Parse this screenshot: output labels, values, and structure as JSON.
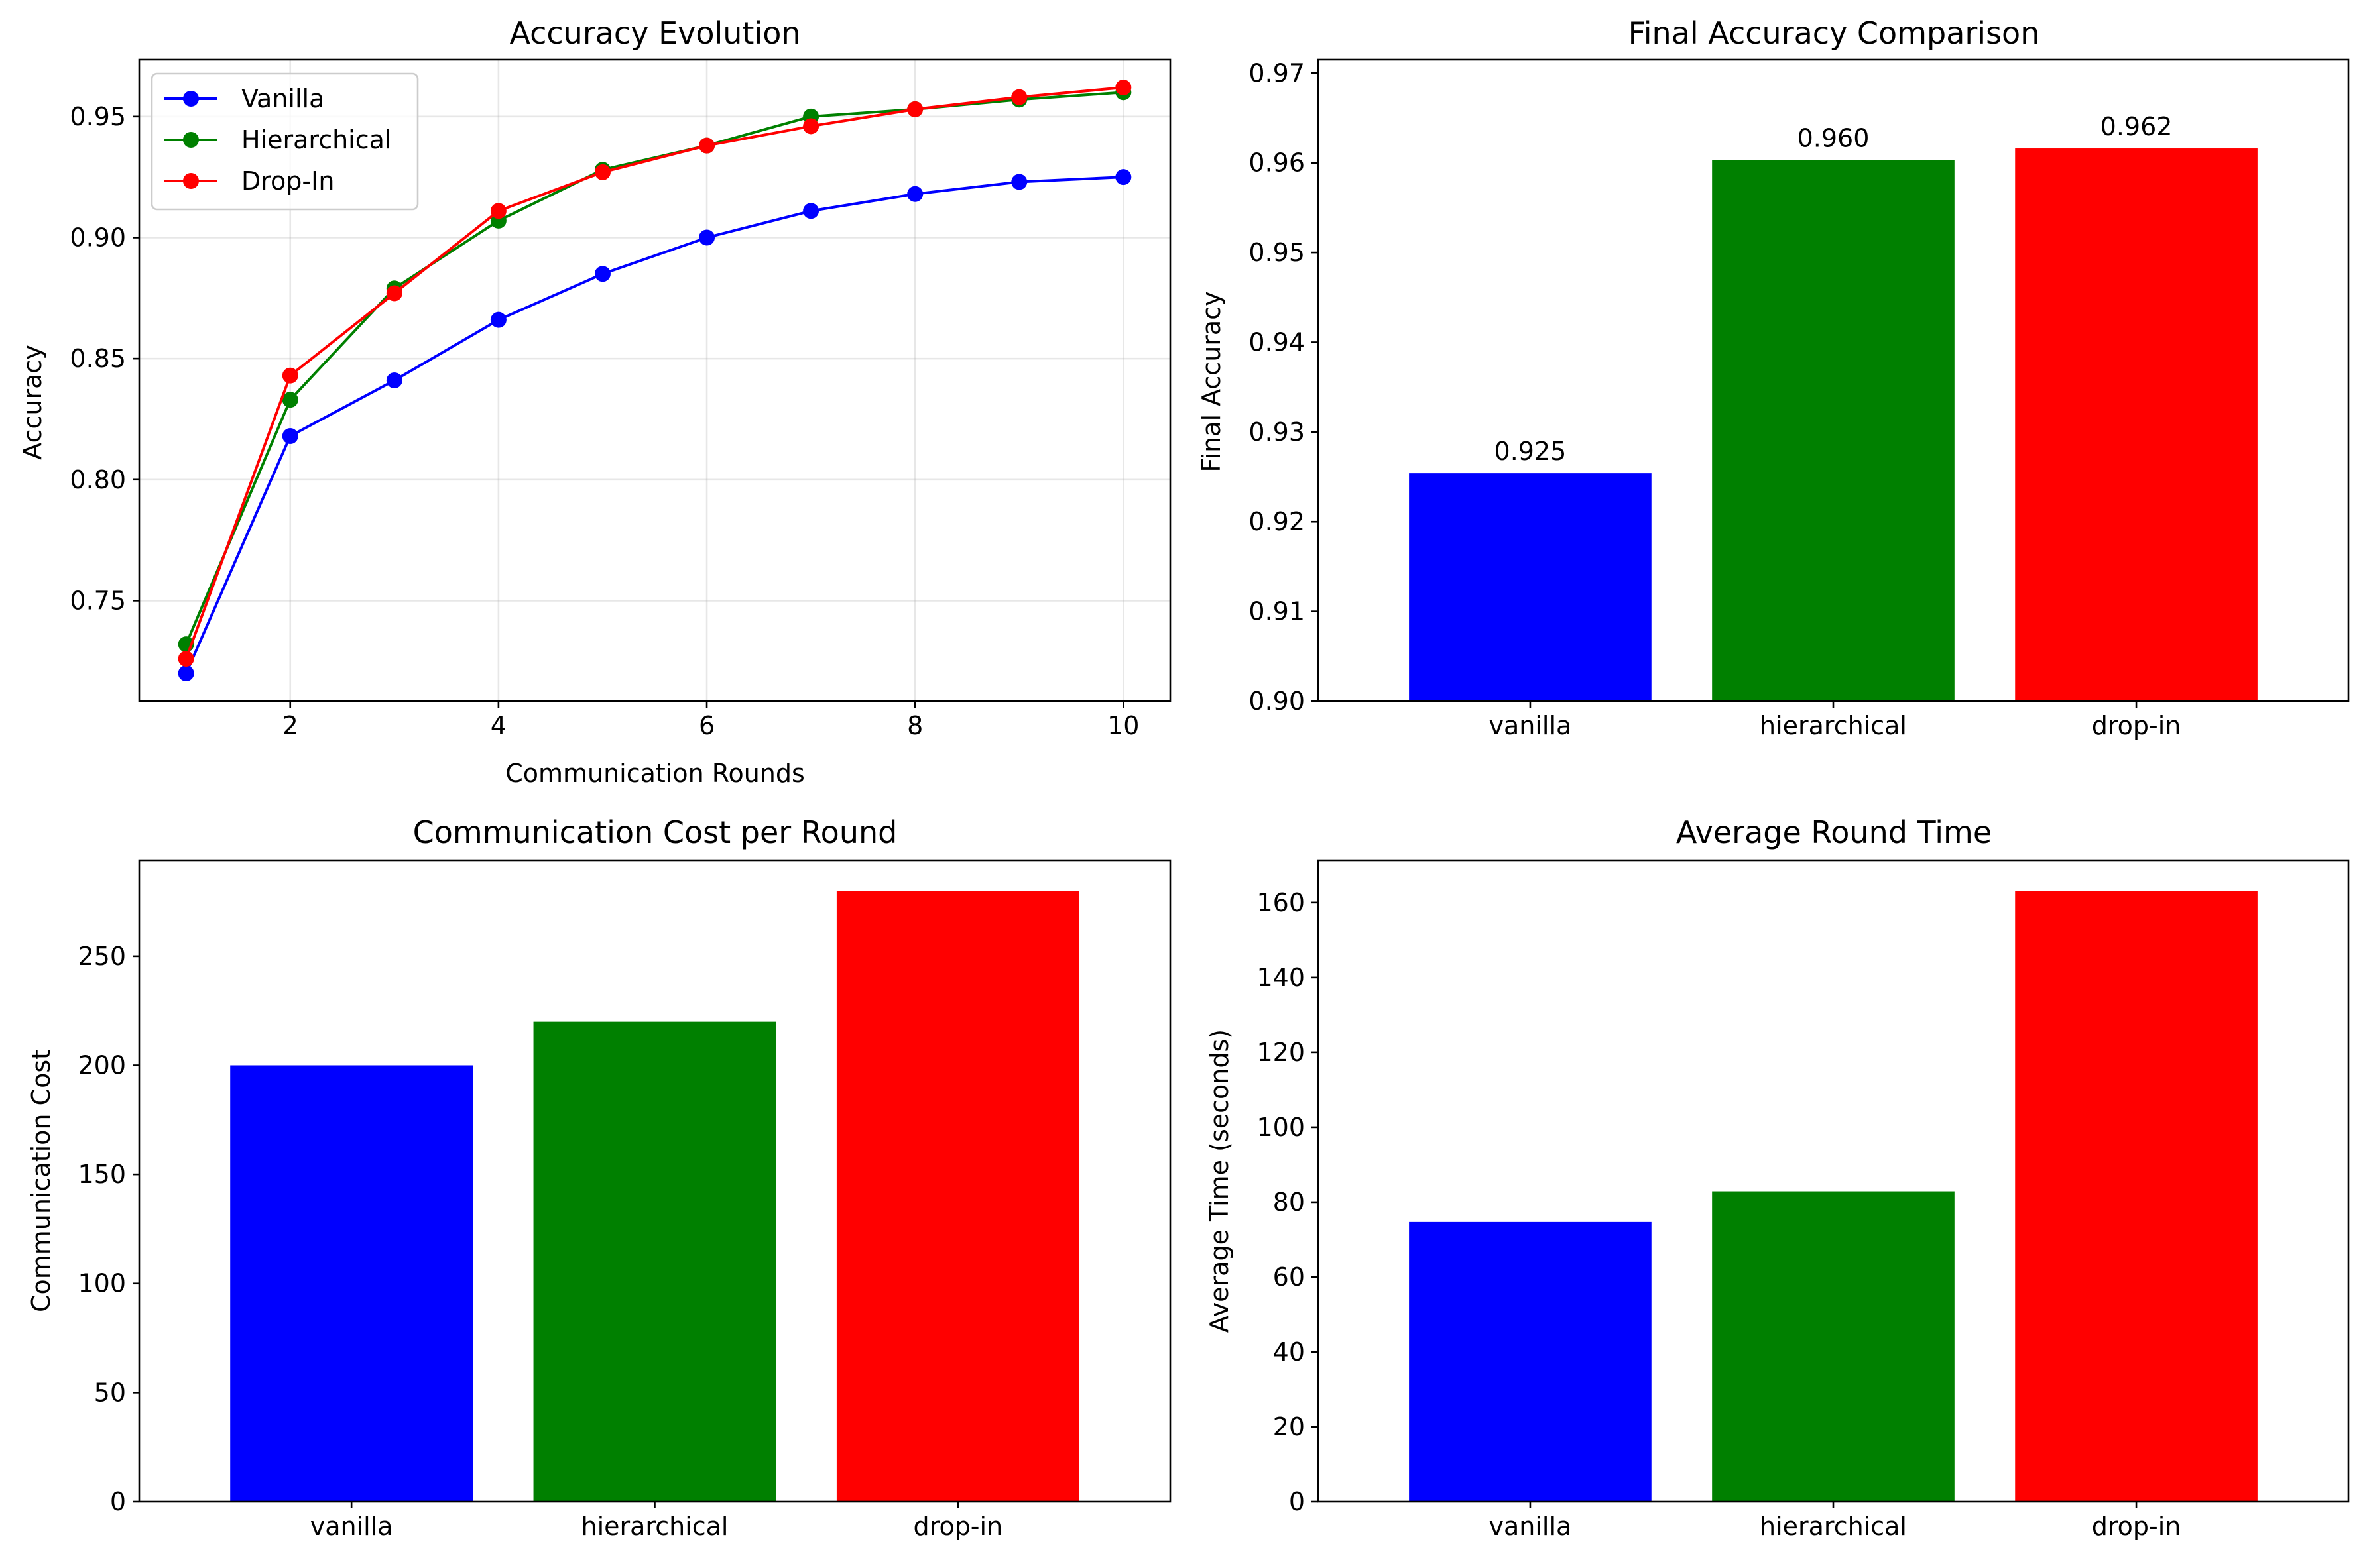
{
  "chart_data": [
    {
      "type": "line",
      "title": "Accuracy Evolution",
      "xlabel": "Communication Rounds",
      "ylabel": "Accuracy",
      "xlim": [
        0.55,
        10.45
      ],
      "ylim": [
        0.7085,
        0.9735
      ],
      "xticks": [
        2,
        4,
        6,
        8,
        10
      ],
      "yticks": [
        0.75,
        0.8,
        0.85,
        0.9,
        0.95
      ],
      "grid": true,
      "legend": "top-left",
      "x": [
        1,
        2,
        3,
        4,
        5,
        6,
        7,
        8,
        9,
        10
      ],
      "series": [
        {
          "name": "Vanilla",
          "color": "#0000ff",
          "values": [
            0.72,
            0.818,
            0.841,
            0.866,
            0.885,
            0.9,
            0.911,
            0.918,
            0.923,
            0.925
          ]
        },
        {
          "name": "Hierarchical",
          "color": "#008000",
          "values": [
            0.732,
            0.833,
            0.879,
            0.907,
            0.928,
            0.938,
            0.95,
            0.953,
            0.957,
            0.96
          ]
        },
        {
          "name": "Drop-In",
          "color": "#ff0000",
          "values": [
            0.726,
            0.843,
            0.877,
            0.911,
            0.927,
            0.938,
            0.946,
            0.953,
            0.958,
            0.962
          ]
        }
      ]
    },
    {
      "type": "bar",
      "title": "Final Accuracy Comparison",
      "xlabel": "",
      "ylabel": "Final Accuracy",
      "ylim": [
        0.9,
        0.9715
      ],
      "yticks": [
        0.9,
        0.91,
        0.92,
        0.93,
        0.94,
        0.95,
        0.96,
        0.97
      ],
      "grid": false,
      "categories": [
        "vanilla",
        "hierarchical",
        "drop-in"
      ],
      "values": [
        0.9254,
        0.9603,
        0.9616
      ],
      "colors": [
        "#0000ff",
        "#008000",
        "#ff0000"
      ],
      "data_labels": [
        "0.925",
        "0.960",
        "0.962"
      ]
    },
    {
      "type": "bar",
      "title": "Communication Cost per Round",
      "xlabel": "",
      "ylabel": "Communication Cost",
      "ylim": [
        0,
        294
      ],
      "yticks": [
        0,
        50,
        100,
        150,
        200,
        250
      ],
      "grid": false,
      "categories": [
        "vanilla",
        "hierarchical",
        "drop-in"
      ],
      "values": [
        200,
        220,
        280
      ],
      "colors": [
        "#0000ff",
        "#008000",
        "#ff0000"
      ]
    },
    {
      "type": "bar",
      "title": "Average Round Time",
      "xlabel": "",
      "ylabel": "Average Time (seconds)",
      "ylim": [
        0,
        171.3
      ],
      "yticks": [
        0,
        20,
        40,
        60,
        80,
        100,
        120,
        140,
        160
      ],
      "grid": false,
      "categories": [
        "vanilla",
        "hierarchical",
        "drop-in"
      ],
      "values": [
        74.7,
        82.9,
        163.1
      ],
      "colors": [
        "#0000ff",
        "#008000",
        "#ff0000"
      ]
    }
  ]
}
